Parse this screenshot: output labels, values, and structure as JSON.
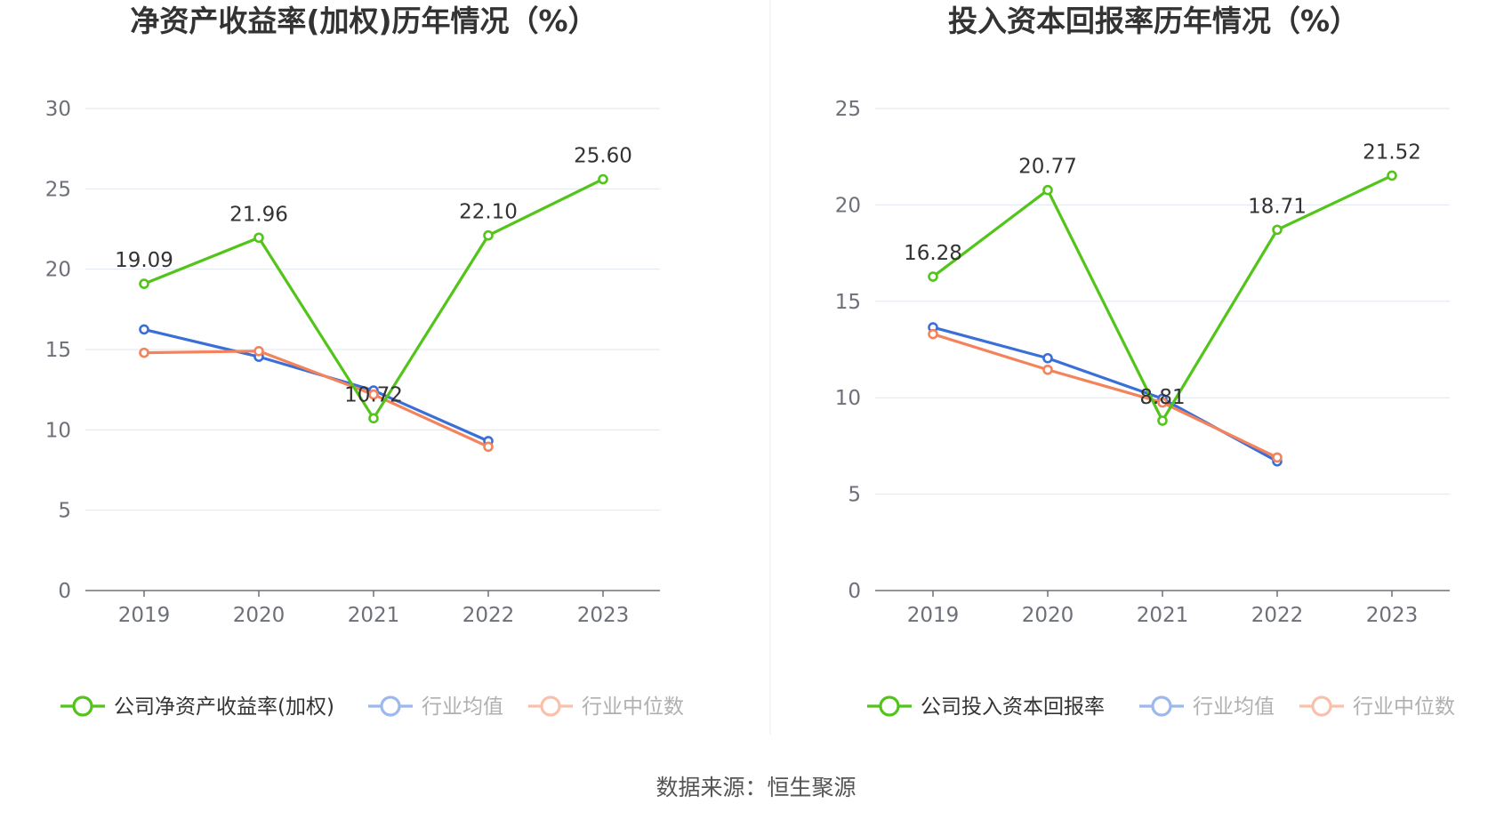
{
  "chart_data": [
    {
      "type": "line",
      "title": "净资产收益率(加权)历年情况（%）",
      "categories": [
        "2019",
        "2020",
        "2021",
        "2022",
        "2023"
      ],
      "ylim": [
        0,
        30
      ],
      "yticks": [
        "0",
        "5",
        "10",
        "15",
        "20",
        "25",
        "30"
      ],
      "grid": true,
      "legend_position": "bottom",
      "series": [
        {
          "name": "公司净资产收益率(加权)",
          "color": "#52c41a",
          "values": [
            19.09,
            21.96,
            10.72,
            22.1,
            25.6
          ],
          "labels": [
            "19.09",
            "21.96",
            "10.72",
            "22.10",
            "25.60"
          ]
        },
        {
          "name": "行业均值",
          "color": "#3b6fd8",
          "legend_color": "#9db8ec",
          "values": [
            16.25,
            14.55,
            12.45,
            9.3,
            null
          ]
        },
        {
          "name": "行业中位数",
          "color": "#f4825a",
          "legend_color": "#f9c0ac",
          "values": [
            14.8,
            14.9,
            12.2,
            8.95,
            null
          ]
        }
      ]
    },
    {
      "type": "line",
      "title": "投入资本回报率历年情况（%）",
      "categories": [
        "2019",
        "2020",
        "2021",
        "2022",
        "2023"
      ],
      "ylim": [
        0,
        25
      ],
      "yticks": [
        "0",
        "5",
        "10",
        "15",
        "20",
        "25"
      ],
      "grid": true,
      "legend_position": "bottom",
      "series": [
        {
          "name": "公司投入资本回报率",
          "color": "#52c41a",
          "values": [
            16.28,
            20.77,
            8.81,
            18.71,
            21.52
          ],
          "labels": [
            "16.28",
            "20.77",
            "8.81",
            "18.71",
            "21.52"
          ]
        },
        {
          "name": "行业均值",
          "color": "#3b6fd8",
          "legend_color": "#9db8ec",
          "values": [
            13.65,
            12.05,
            9.95,
            6.7,
            null
          ]
        },
        {
          "name": "行业中位数",
          "color": "#f4825a",
          "legend_color": "#f9c0ac",
          "values": [
            13.3,
            11.45,
            9.75,
            6.9,
            null
          ]
        }
      ]
    }
  ],
  "footer": {
    "source": "数据来源：恒生聚源"
  }
}
